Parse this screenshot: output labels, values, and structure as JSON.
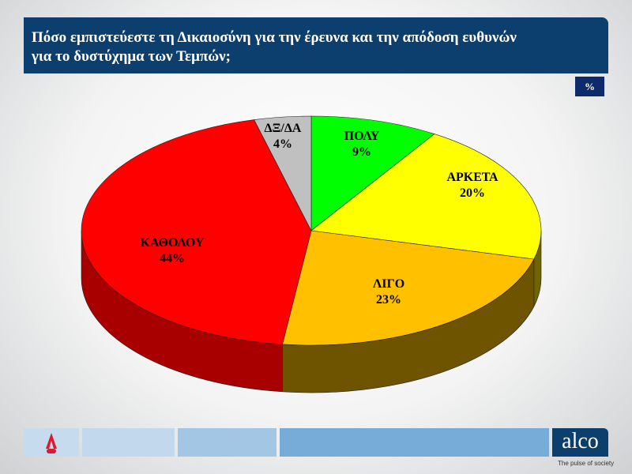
{
  "header": {
    "title_line1": "Πόσο εμπιστεύεστε τη Δικαιοσύνη για την έρευνα και την απόδοση ευθυνών",
    "title_line2": "για το δυστύχημα των Τεμπών;",
    "unit": "%"
  },
  "chart_data": {
    "type": "pie",
    "style": "3d",
    "categories": [
      "ΠΟΛΥ",
      "ΑΡΚΕΤΑ",
      "ΛΙΓΟ",
      "ΚΑΘΟΛΟΥ",
      "ΔΞ/ΔΑ"
    ],
    "values": [
      9,
      20,
      23,
      44,
      4
    ],
    "labels": [
      "9%",
      "20%",
      "23%",
      "44%",
      "4%"
    ],
    "colors": [
      "#00ff00",
      "#ffff00",
      "#ffc000",
      "#ff0000",
      "#c0c0c0"
    ],
    "side_colors": [
      "#009900",
      "#6e6400",
      "#6e5400",
      "#a80000",
      "#808080"
    ],
    "start": "12 o'clock",
    "direction": "clockwise"
  },
  "footer": {
    "logo_left": "ALPHA NEWS",
    "logo_right": "alco",
    "tagline": "The pulse of society"
  }
}
